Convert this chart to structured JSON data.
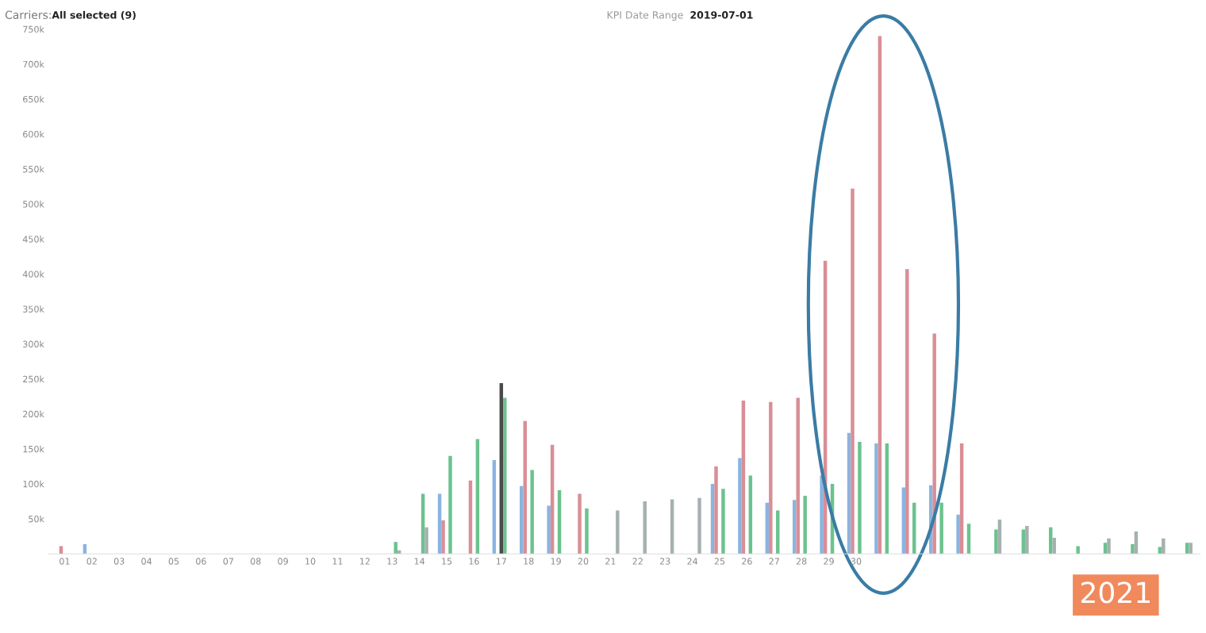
{
  "chart_data": {
    "type": "bar",
    "categories": [
      "01",
      "02",
      "03",
      "04",
      "05",
      "06",
      "07",
      "08",
      "09",
      "10",
      "11",
      "12",
      "13",
      "14",
      "15",
      "16",
      "17",
      "18",
      "19",
      "20",
      "21",
      "22",
      "23",
      "24",
      "25",
      "26",
      "27",
      "28",
      "29",
      "30",
      null,
      null,
      null,
      null,
      null,
      null,
      null,
      null,
      null,
      null,
      null,
      null
    ],
    "series": [
      {
        "color": "#8ab4e0",
        "values": [
          null,
          14000,
          null,
          null,
          null,
          null,
          null,
          null,
          null,
          null,
          null,
          null,
          null,
          null,
          86000,
          null,
          134000,
          97000,
          69000,
          null,
          null,
          null,
          null,
          null,
          100000,
          137000,
          73000,
          77000,
          112000,
          173000,
          158000,
          95000,
          98000,
          56000,
          null,
          null,
          null,
          null,
          null,
          null,
          null,
          null
        ]
      },
      {
        "color": "#d98e95",
        "values": [
          11000,
          null,
          null,
          null,
          null,
          null,
          null,
          null,
          null,
          null,
          null,
          null,
          null,
          null,
          48000,
          105000,
          null,
          190000,
          156000,
          86000,
          null,
          null,
          null,
          null,
          125000,
          219000,
          217000,
          223000,
          419000,
          522000,
          740000,
          407000,
          315000,
          158000,
          null,
          null,
          null,
          null,
          null,
          null,
          null,
          null
        ]
      },
      {
        "color": "#4a4a4a",
        "values": [
          null,
          null,
          null,
          null,
          null,
          null,
          null,
          null,
          null,
          null,
          null,
          null,
          null,
          null,
          null,
          null,
          244000,
          null,
          null,
          null,
          null,
          null,
          null,
          null,
          null,
          null,
          null,
          null,
          null,
          null,
          null,
          null,
          null,
          null,
          null,
          null,
          null,
          null,
          null,
          null,
          null,
          null
        ]
      },
      {
        "color": "#6cc28e",
        "values": [
          null,
          null,
          null,
          null,
          null,
          null,
          null,
          null,
          null,
          null,
          null,
          null,
          17000,
          86000,
          140000,
          164000,
          223000,
          120000,
          91000,
          65000,
          null,
          null,
          null,
          null,
          93000,
          112000,
          62000,
          83000,
          100000,
          160000,
          158000,
          73000,
          73000,
          43000,
          35000,
          35000,
          38000,
          11000,
          16000,
          14000,
          10000,
          16000
        ]
      },
      {
        "color": "#a6b0b0",
        "values": [
          null,
          null,
          null,
          null,
          null,
          null,
          null,
          null,
          null,
          null,
          null,
          null,
          5000,
          38000,
          null,
          null,
          null,
          null,
          null,
          null,
          62000,
          75000,
          78000,
          80000,
          null,
          null,
          null,
          null,
          null,
          null,
          null,
          null,
          null,
          null,
          49000,
          40000,
          23000,
          null,
          22000,
          32000,
          22000,
          16000
        ]
      }
    ],
    "ylim": [
      0,
      750000
    ],
    "yticks": [
      {
        "value": 50000,
        "label": "50k"
      },
      {
        "value": 100000,
        "label": "100k"
      },
      {
        "value": 150000,
        "label": "150k"
      },
      {
        "value": 200000,
        "label": "200k"
      },
      {
        "value": 250000,
        "label": "250k"
      },
      {
        "value": 300000,
        "label": "300k"
      },
      {
        "value": 350000,
        "label": "350k"
      },
      {
        "value": 400000,
        "label": "400k"
      },
      {
        "value": 450000,
        "label": "450k"
      },
      {
        "value": 500000,
        "label": "500k"
      },
      {
        "value": 550000,
        "label": "550k"
      },
      {
        "value": 600000,
        "label": "600k"
      },
      {
        "value": 650000,
        "label": "650k"
      },
      {
        "value": 700000,
        "label": "700k"
      },
      {
        "value": 750000,
        "label": "750k"
      }
    ],
    "grid": false,
    "legend": false,
    "annotations": [
      "Carriers:",
      "All selected (9)",
      "KPI Date Range",
      "2019-07-01",
      "2021"
    ]
  }
}
